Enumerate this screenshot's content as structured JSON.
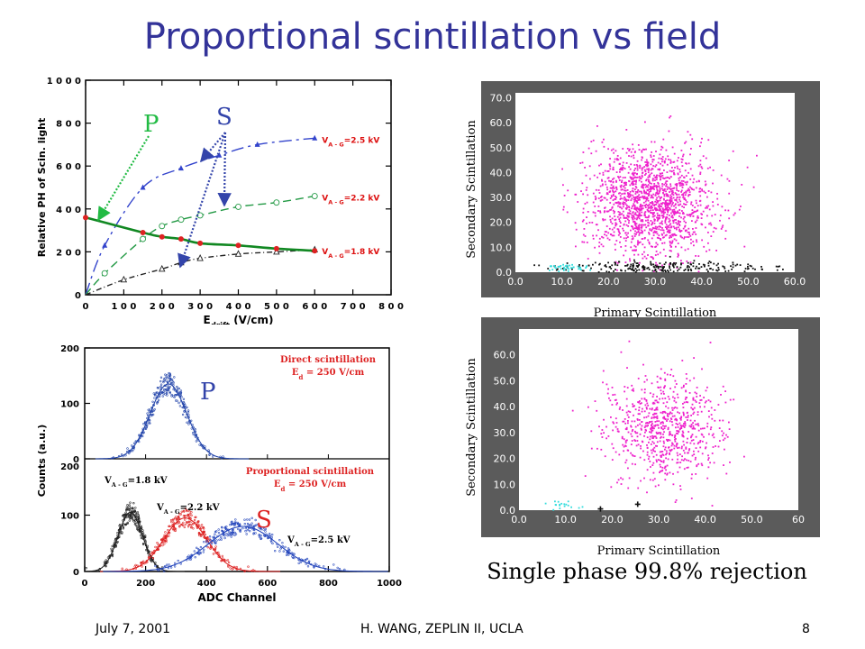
{
  "slide": {
    "title": "Proportional scintillation vs field",
    "rejection_note": "Single phase 99.8% rejection",
    "footer": {
      "date": "July 7, 2001",
      "author": "H. WANG, ZEPLIN II, UCLA",
      "page": "8"
    },
    "annotations": {
      "p_top": "P",
      "s_top": "S",
      "p_mid": "P",
      "s_low": "S"
    },
    "colors": {
      "title": "#333399",
      "green_note": "#22bb44",
      "blue_note": "#3344aa",
      "red_note": "#dd2222"
    }
  },
  "chart_data": [
    {
      "type": "line",
      "ylabel": "Relative PH of Scin. light",
      "xlabel_main": "E",
      "xlabel_sub": "drift",
      "xlabel_unit": " (V/cm)",
      "xlim": [
        0,
        800
      ],
      "ylim": [
        0,
        1000
      ],
      "xticks": [
        0,
        100,
        200,
        300,
        400,
        500,
        600,
        700,
        800
      ],
      "xtick_labels": [
        "0",
        "1 0 0",
        "2 0 0",
        "3 0 0",
        "4 0 0",
        "5 0 0",
        "6 0 0",
        "7 0 0",
        "8 0 0"
      ],
      "yticks": [
        0,
        200,
        400,
        600,
        800,
        1000
      ],
      "ytick_labels": [
        "0",
        "2 0 0",
        "4 0 0",
        "6 0 0",
        "8 0 0",
        "1 0 0 0"
      ],
      "grid": false,
      "series": [
        {
          "name": "V_A-G=2.5 kV",
          "label_main": "V",
          "label_sub": "A - G",
          "label_tail": "=2.5  kV",
          "color": "#3344cc",
          "text_color": "#dd1111",
          "dash": "14,5,3,5",
          "marker": "triangle-filled",
          "x": [
            0,
            50,
            150,
            250,
            350,
            450,
            600
          ],
          "y": [
            0,
            230,
            500,
            590,
            650,
            700,
            730
          ]
        },
        {
          "name": "V_A-G=2.2 kV",
          "label_main": "V",
          "label_sub": "A - G",
          "label_tail": "=2.2  kV",
          "color": "#229944",
          "text_color": "#dd1111",
          "dash": "9,5",
          "marker": "circle-open",
          "x": [
            0,
            50,
            150,
            200,
            250,
            300,
            400,
            500,
            600
          ],
          "y": [
            0,
            100,
            260,
            320,
            350,
            370,
            410,
            430,
            460
          ]
        },
        {
          "name": "V_A-G=1.8 kV",
          "label_main": "V",
          "label_sub": "A - G",
          "label_tail": "=1.8  kV",
          "color": "#222222",
          "text_color": "#dd1111",
          "dash": "6,3,1,3",
          "marker": "triangle-open",
          "x": [
            0,
            100,
            200,
            250,
            300,
            400,
            500,
            600
          ],
          "y": [
            0,
            70,
            120,
            150,
            170,
            190,
            200,
            210
          ]
        },
        {
          "name": "Direct scintillation",
          "color": "#118822",
          "dash": "",
          "marker": "circle-filled-red",
          "x": [
            0,
            150,
            200,
            250,
            300,
            400,
            500,
            600
          ],
          "y": [
            360,
            290,
            270,
            260,
            240,
            230,
            215,
            205
          ]
        }
      ]
    },
    {
      "type": "line",
      "ylabel": "Counts (a.u.)",
      "xlabel": "ADC Channel",
      "xlim": [
        0,
        1000
      ],
      "ylim": [
        0,
        200
      ],
      "xticks": [
        0,
        200,
        400,
        600,
        800,
        1000
      ],
      "xtick_labels": [
        "0",
        "200",
        "400",
        "600",
        "800",
        "1000"
      ],
      "yticks": [
        0,
        100,
        200
      ],
      "ytick_labels": [
        "0",
        "100",
        "200"
      ],
      "grid": false,
      "top_panel": {
        "title": "Direct scintillation",
        "field_main": "E",
        "field_sub": "d",
        "field_tail": " = 250 V/cm",
        "series": [
          {
            "name": "Direct scintillation",
            "color": "#2244aa",
            "peak_channel": 275,
            "peak_counts": 135,
            "width": 60
          }
        ]
      },
      "bottom_panel": {
        "title": "Proportional scintillation",
        "field_main": "E",
        "field_sub": "d",
        "field_tail": " = 250 V/cm",
        "series": [
          {
            "name": "V_A-G=1.8 kV",
            "label_main": "V",
            "label_sub": "A - G",
            "label_tail": "=1.8  kV",
            "color": "#222222",
            "peak_channel": 150,
            "peak_counts": 105,
            "width": 40
          },
          {
            "name": "V_A-G=2.2 kV",
            "label_main": "V",
            "label_sub": "A - G",
            "label_tail": "=2.2  kV",
            "color": "#dd2222",
            "peak_channel": 330,
            "peak_counts": 95,
            "width": 70
          },
          {
            "name": "V_A-G=2.5 kV",
            "label_main": "V",
            "label_sub": "A - G",
            "label_tail": "=2.5  kV",
            "color": "#2244bb",
            "peak_channel": 520,
            "peak_counts": 80,
            "width": 115
          }
        ]
      }
    },
    {
      "type": "scatter",
      "xlabel": "Primary Scintillation",
      "ylabel": "Secondary Scintillation",
      "xlim": [
        0,
        60
      ],
      "ylim": [
        0,
        72
      ],
      "xticks": [
        0,
        10,
        20,
        30,
        40,
        50,
        60
      ],
      "xtick_labels": [
        "0.0",
        "10.0",
        "20.0",
        "30.0",
        "40.0",
        "50.0",
        "60.0"
      ],
      "yticks": [
        0,
        10,
        20,
        30,
        40,
        50,
        60,
        70
      ],
      "ytick_labels": [
        "0.0",
        "10.0",
        "20.0",
        "30.0",
        "40.0",
        "50.0",
        "60.0",
        "70.0"
      ],
      "grid": false,
      "clusters": [
        {
          "color": "#ee22cc",
          "count": 1600,
          "mean_x": 29,
          "mean_y": 28,
          "sd_x": 6.5,
          "sd_y": 11
        },
        {
          "color": "#111111",
          "count": 230,
          "mean_x": 32,
          "mean_y": 2,
          "sd_x": 11,
          "sd_y": 1.2
        },
        {
          "color": "#33dddd",
          "count": 45,
          "mean_x": 11,
          "mean_y": 1.6,
          "sd_x": 2.2,
          "sd_y": 1.0
        }
      ]
    },
    {
      "type": "scatter",
      "xlabel": "Primary Scintillation",
      "ylabel": "Secondary Scintillation",
      "xlim": [
        0,
        60
      ],
      "ylim": [
        0,
        70
      ],
      "xticks": [
        0,
        10,
        20,
        30,
        40,
        50,
        60
      ],
      "xtick_labels": [
        "0.0",
        "10.0",
        "20.0",
        "30.0",
        "40.0",
        "50.0",
        "60"
      ],
      "yticks": [
        0,
        10,
        20,
        30,
        40,
        50,
        60
      ],
      "ytick_labels": [
        "0.0",
        "10.0",
        "20.0",
        "30.0",
        "40.0",
        "50.0",
        "60.0"
      ],
      "grid": false,
      "clusters": [
        {
          "color": "#ee22cc",
          "count": 750,
          "mean_x": 31,
          "mean_y": 31,
          "sd_x": 6.5,
          "sd_y": 10.5
        },
        {
          "color": "#33dddd",
          "count": 18,
          "mean_x": 9,
          "mean_y": 2.2,
          "sd_x": 2.0,
          "sd_y": 1.0
        }
      ],
      "points": [
        {
          "color": "#111111",
          "x": 17.5,
          "y": 0.5
        },
        {
          "color": "#111111",
          "x": 25.5,
          "y": 2.3
        }
      ]
    }
  ]
}
